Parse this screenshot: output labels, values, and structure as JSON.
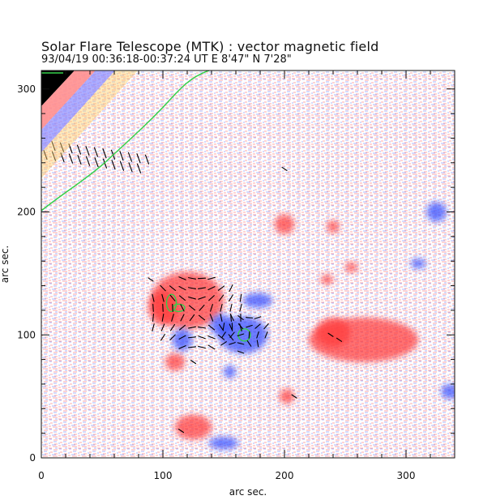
{
  "title": "Solar Flare Telescope (MTK) : vector magnetic field",
  "subtitle": "93/04/19  00:36:18-00:37:24 UT     E 8'47\"  N 7'28\"",
  "axes": {
    "xlabel": "arc sec.",
    "ylabel": "arc sec.",
    "xlim": [
      0,
      340
    ],
    "ylim": [
      0,
      315
    ],
    "xticks": [
      "0",
      "100",
      "200",
      "300"
    ],
    "yticks": [
      "0",
      "100",
      "200",
      "300"
    ]
  },
  "colors": {
    "positive": "#ff3b3b",
    "negative": "#3b52ff",
    "contour": "#35d04b",
    "vectors": "#000000",
    "background": "#ffffff"
  },
  "chart_data": {
    "type": "heatmap",
    "title": "Solar Flare Telescope (MTK) : vector magnetic field",
    "xlabel": "arc sec.",
    "ylabel": "arc sec.",
    "xlim": [
      0,
      340
    ],
    "ylim": [
      0,
      315
    ],
    "xticks": [
      0,
      100,
      200,
      300
    ],
    "yticks": [
      0,
      100,
      200,
      300
    ],
    "regions": [
      {
        "polarity": "positive",
        "x": 120,
        "y": 128,
        "rx": 30,
        "ry": 23
      },
      {
        "polarity": "positive",
        "x": 100,
        "y": 122,
        "rx": 12,
        "ry": 14
      },
      {
        "polarity": "positive",
        "x": 265,
        "y": 96,
        "rx": 45,
        "ry": 18
      },
      {
        "polarity": "positive",
        "x": 240,
        "y": 102,
        "rx": 14,
        "ry": 12
      },
      {
        "polarity": "positive",
        "x": 200,
        "y": 190,
        "rx": 8,
        "ry": 8
      },
      {
        "polarity": "positive",
        "x": 110,
        "y": 78,
        "rx": 8,
        "ry": 7
      },
      {
        "polarity": "positive",
        "x": 202,
        "y": 50,
        "rx": 6,
        "ry": 6
      },
      {
        "polarity": "positive",
        "x": 255,
        "y": 155,
        "rx": 5,
        "ry": 4
      },
      {
        "polarity": "positive",
        "x": 125,
        "y": 25,
        "rx": 15,
        "ry": 10
      },
      {
        "polarity": "positive",
        "x": 240,
        "y": 188,
        "rx": 5,
        "ry": 5
      },
      {
        "polarity": "positive",
        "x": 235,
        "y": 145,
        "rx": 5,
        "ry": 4
      },
      {
        "polarity": "negative",
        "x": 166,
        "y": 100,
        "rx": 20,
        "ry": 15
      },
      {
        "polarity": "negative",
        "x": 148,
        "y": 108,
        "rx": 9,
        "ry": 9
      },
      {
        "polarity": "negative",
        "x": 116,
        "y": 96,
        "rx": 8,
        "ry": 9
      },
      {
        "polarity": "negative",
        "x": 178,
        "y": 128,
        "rx": 12,
        "ry": 6
      },
      {
        "polarity": "negative",
        "x": 155,
        "y": 70,
        "rx": 5,
        "ry": 5
      },
      {
        "polarity": "negative",
        "x": 150,
        "y": 12,
        "rx": 12,
        "ry": 5
      },
      {
        "polarity": "negative",
        "x": 310,
        "y": 158,
        "rx": 6,
        "ry": 4
      },
      {
        "polarity": "negative",
        "x": 336,
        "y": 54,
        "rx": 7,
        "ry": 6
      },
      {
        "polarity": "negative",
        "x": 325,
        "y": 200,
        "rx": 8,
        "ry": 8
      }
    ],
    "contours": [
      {
        "x": 107,
        "y": 126,
        "rx": 4,
        "ry": 7
      },
      {
        "x": 113,
        "y": 122,
        "rx": 5,
        "ry": 3
      },
      {
        "x": 167,
        "y": 100,
        "rx": 5,
        "ry": 5
      }
    ]
  }
}
